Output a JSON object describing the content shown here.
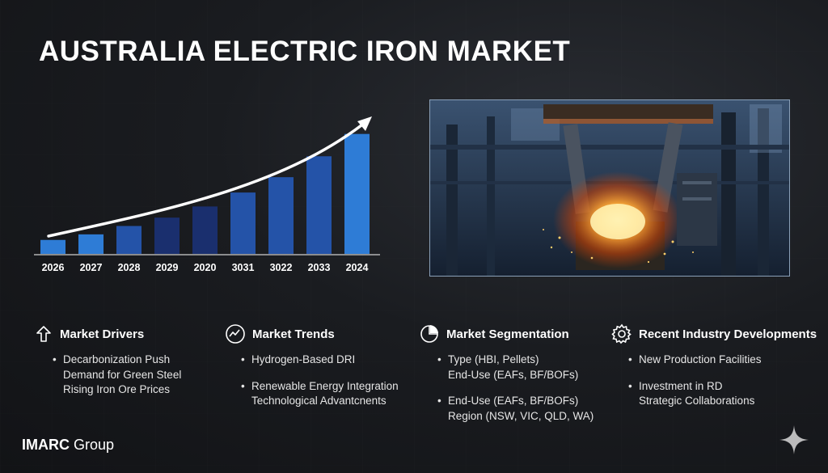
{
  "title": "AUSTRALIA ELECTRIC IRON MARKET",
  "colors": {
    "bar_dark": "#1a2f6e",
    "bar_mid": "#2453a8",
    "bar_light": "#2e7cd6",
    "arrow": "#ffffff",
    "text": "#ffffff"
  },
  "chart_data": {
    "type": "bar",
    "categories": [
      "2026",
      "2027",
      "2028",
      "2029",
      "2020",
      "3031",
      "3022",
      "2033",
      "2024"
    ],
    "values": [
      1.0,
      1.4,
      2.0,
      2.6,
      3.4,
      4.4,
      5.5,
      7.0,
      8.6
    ],
    "trend": "increasing",
    "ylim": [
      0,
      10
    ]
  },
  "photo": {
    "icon": "steel-furnace-photo"
  },
  "sections": [
    {
      "icon": "arrow-up-icon",
      "title": "Market Drivers",
      "items": [
        [
          "Decarbonization Push",
          "Demand for Green Steel",
          "Rising Iron Ore Prices"
        ]
      ]
    },
    {
      "icon": "trend-chart-icon",
      "title": "Market Trends",
      "items": [
        [
          "Hydrogen-Based DRI"
        ],
        [
          "Renewable Energy Integration",
          "Technological Advantcnents"
        ]
      ]
    },
    {
      "icon": "pie-chart-icon",
      "title": "Market Segmentation",
      "items": [
        [
          "Type (HBI, Pellets)",
          "End-Use (EAFs, BF/BOFs)"
        ],
        [
          "End-Use (EAFs, BF/BOFs)",
          "Region (NSW, VIC, QLD, WA)"
        ]
      ]
    },
    {
      "icon": "gear-icon",
      "title": "Recent Industry Developments",
      "items": [
        [
          "New Production Facilities"
        ],
        [
          "Investment in RD",
          "Strategic Collaborations"
        ]
      ]
    }
  ],
  "logo": {
    "bold": "IMARC",
    "regular": " Group"
  },
  "corner_icon": "sparkle-icon"
}
